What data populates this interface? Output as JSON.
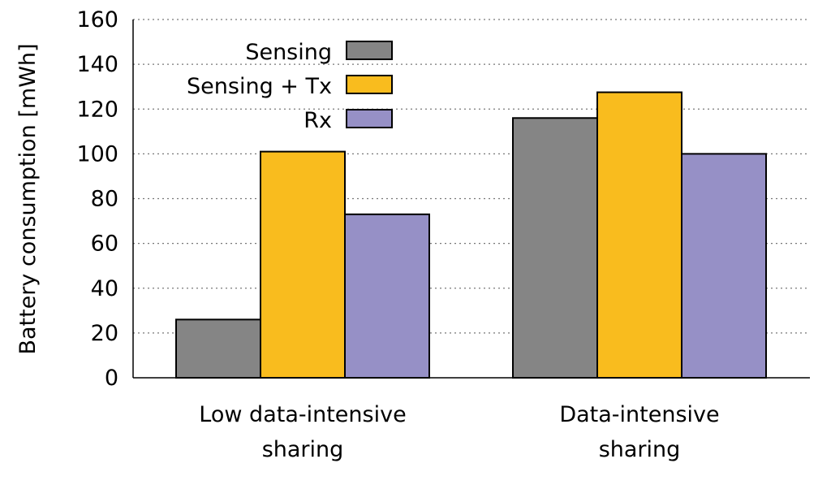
{
  "chart_data": {
    "type": "bar",
    "title": "",
    "xlabel": "",
    "ylabel": "Battery consumption [mWh]",
    "ylim": [
      0,
      160
    ],
    "yticks": [
      0,
      20,
      40,
      60,
      80,
      100,
      120,
      140,
      160
    ],
    "grid": true,
    "legend_position": "top-left",
    "categories": [
      [
        "Low data-intensive",
        "sharing"
      ],
      [
        "Data-intensive",
        "sharing"
      ]
    ],
    "series": [
      {
        "name": "Sensing",
        "color": "#858585",
        "values": [
          26,
          116
        ]
      },
      {
        "name": "Sensing + Tx",
        "color": "#F9BC1E",
        "values": [
          101,
          127.5
        ]
      },
      {
        "name": "Rx",
        "color": "#9690C6",
        "values": [
          73,
          100
        ]
      }
    ]
  }
}
